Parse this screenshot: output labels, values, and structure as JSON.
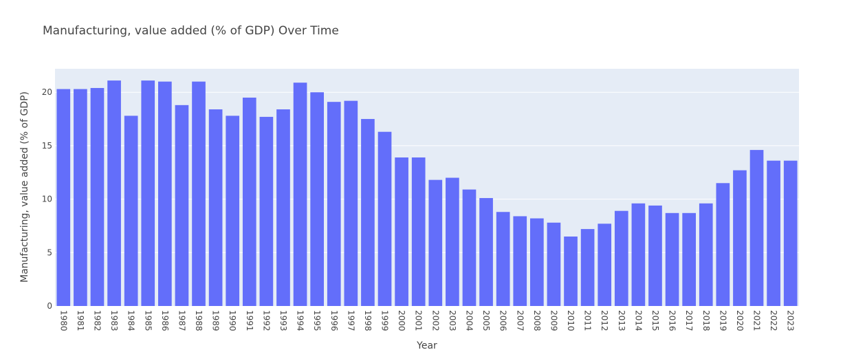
{
  "chart_data": {
    "type": "bar",
    "title": "Manufacturing, value added (% of GDP) Over Time",
    "xlabel": "Year",
    "ylabel": "Manufacturing, value added (% of GDP)",
    "categories": [
      "1980",
      "1981",
      "1982",
      "1983",
      "1984",
      "1985",
      "1986",
      "1987",
      "1988",
      "1989",
      "1990",
      "1991",
      "1992",
      "1993",
      "1994",
      "1995",
      "1996",
      "1997",
      "1998",
      "1999",
      "2000",
      "2001",
      "2002",
      "2003",
      "2004",
      "2005",
      "2006",
      "2007",
      "2008",
      "2009",
      "2010",
      "2011",
      "2012",
      "2013",
      "2014",
      "2015",
      "2016",
      "2017",
      "2018",
      "2019",
      "2020",
      "2021",
      "2022",
      "2023"
    ],
    "values": [
      20.3,
      20.3,
      20.4,
      21.1,
      17.8,
      21.1,
      21.0,
      18.8,
      21.0,
      18.4,
      17.8,
      19.5,
      17.7,
      18.4,
      20.9,
      20.0,
      19.1,
      19.2,
      17.5,
      16.3,
      13.9,
      13.9,
      11.8,
      12.0,
      10.9,
      10.1,
      8.8,
      8.4,
      8.2,
      7.8,
      6.5,
      7.2,
      7.7,
      8.9,
      9.6,
      9.4,
      8.7,
      8.7,
      9.6,
      11.5,
      12.7,
      14.6,
      13.6,
      13.6
    ],
    "ylim": [
      0,
      22.2
    ],
    "yticks": [
      0,
      5,
      10,
      15,
      20
    ],
    "grid": true,
    "bar_color": "#636efa",
    "plot_bg": "#e5ecf6",
    "grid_color": "#ffffff"
  }
}
